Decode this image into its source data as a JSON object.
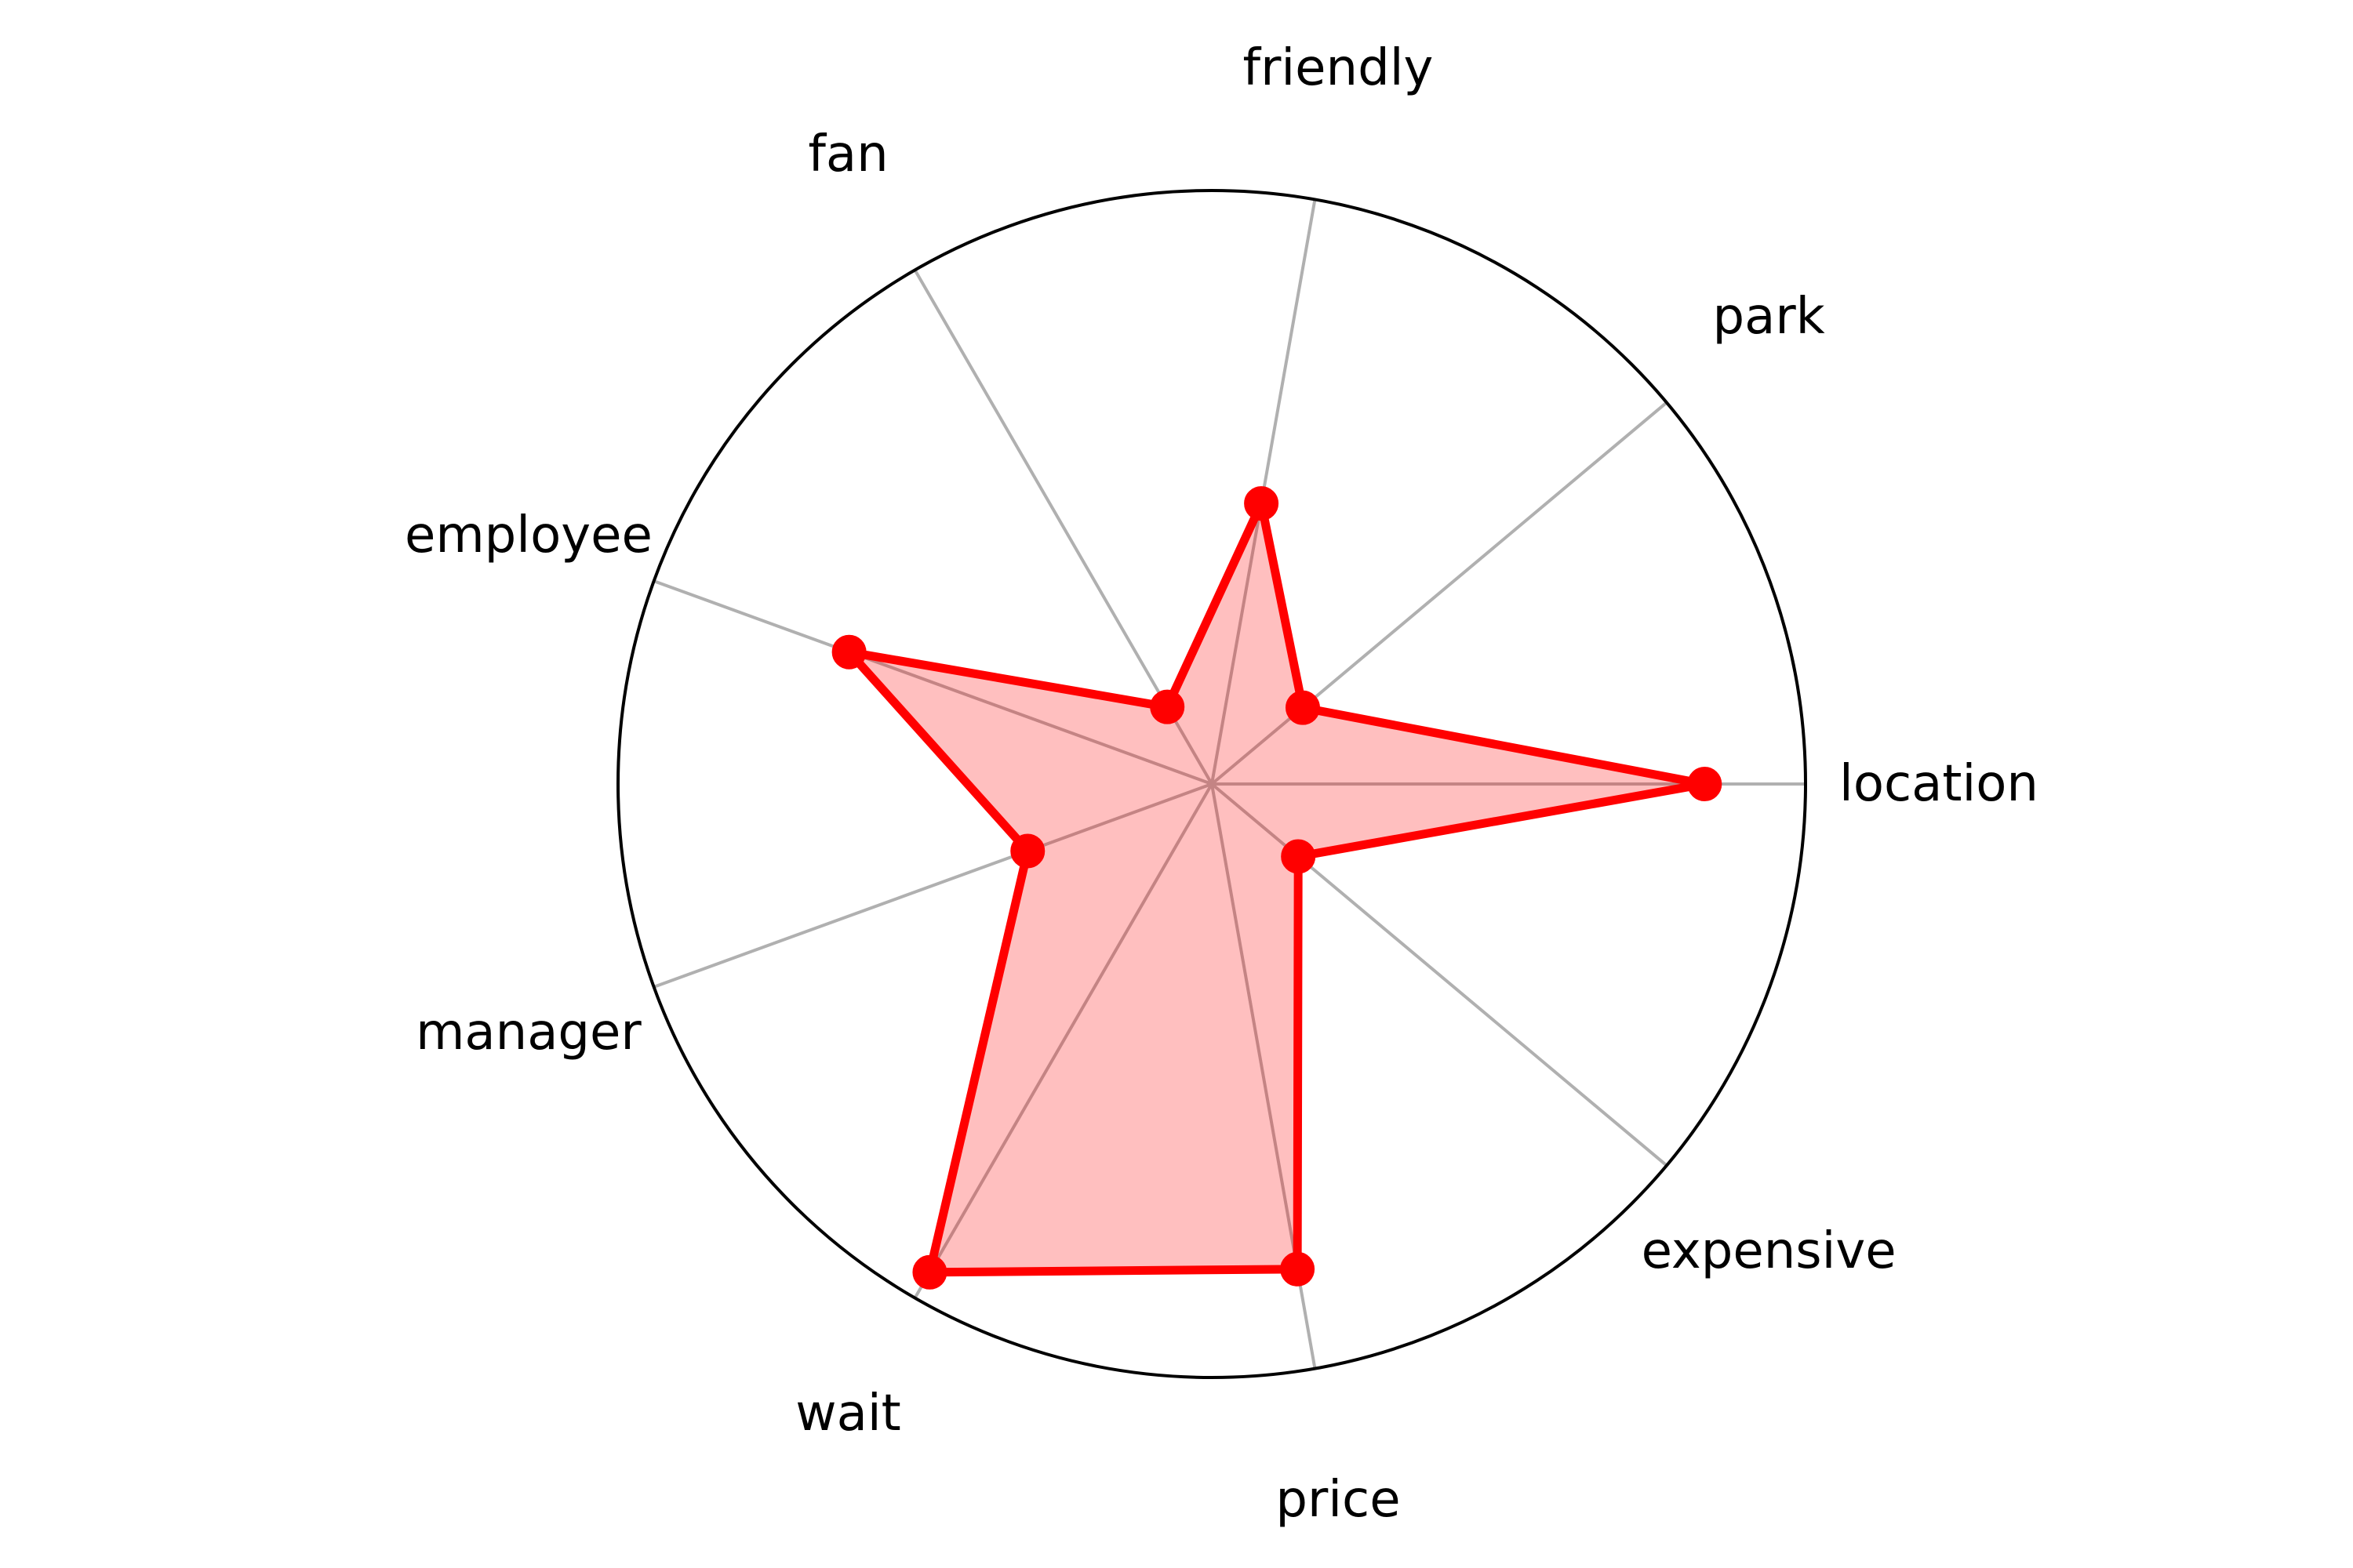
{
  "chart_data": {
    "type": "radar",
    "title": "",
    "categories": [
      "location",
      "park",
      "friendly",
      "fan",
      "employee",
      "manager",
      "wait",
      "price",
      "expensive"
    ],
    "series": [
      {
        "values": [
          0.83,
          0.2,
          0.48,
          0.15,
          0.65,
          0.33,
          0.95,
          0.83,
          0.19
        ]
      }
    ],
    "rlim": [
      0,
      1
    ],
    "grid": true,
    "colors": {
      "series": "#ff0000",
      "series_fill": "#ff0000",
      "spokes": "#b0b0b0",
      "outer_ring": "#000000",
      "labels": "#000000"
    }
  }
}
